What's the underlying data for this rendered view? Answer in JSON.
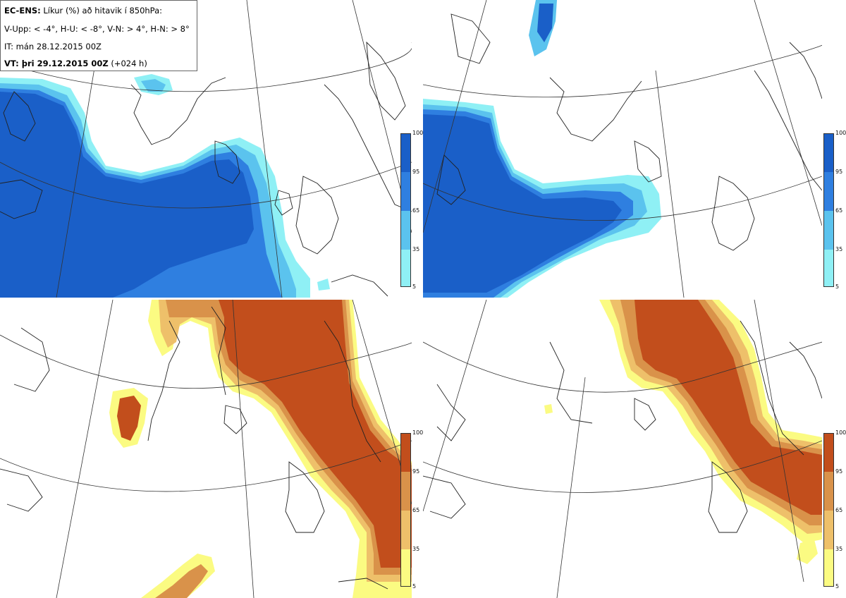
{
  "header": {
    "model": "EC-ENS:",
    "title_rest": "Líkur (%) að hitavik í 850hPa:",
    "thresholds": "V-Upp: < -4°, H-U: < -8°, V-N: > 4°, H-N: > 8°",
    "init_time": "IT: mán 28.12.2015 00Z",
    "valid_prefix": "VT: þri 29.12.2015 00Z",
    "valid_lead": "(+024 h)"
  },
  "panels": [
    {
      "id": "V-Upp",
      "meaning": "cold anomaly < -4°",
      "colorscale": "blue"
    },
    {
      "id": "H-U",
      "meaning": "cold anomaly < -8°",
      "colorscale": "blue"
    },
    {
      "id": "V-N",
      "meaning": "warm anomaly > 4°",
      "colorscale": "orange"
    },
    {
      "id": "H-N",
      "meaning": "warm anomaly > 8°",
      "colorscale": "orange"
    }
  ],
  "colorbar": {
    "ticks": [
      "100",
      "95",
      "65",
      "35",
      "5"
    ],
    "blue_colors": [
      "#1a5fc8",
      "#2f7fe0",
      "#5bc3ee",
      "#8ff0f5"
    ],
    "orange_colors": [
      "#c24e1c",
      "#d9924a",
      "#eec06a",
      "#fbfb82"
    ]
  }
}
